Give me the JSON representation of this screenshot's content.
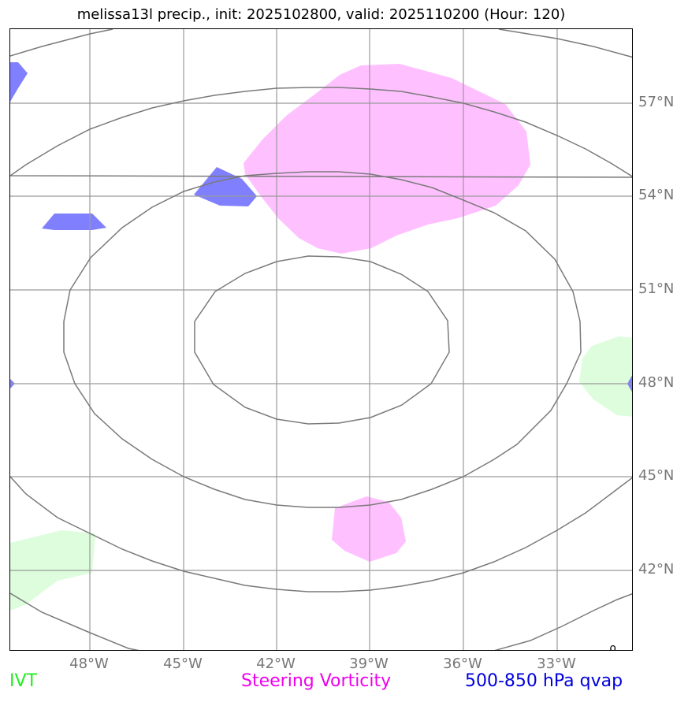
{
  "title": "melissa13l precip., init: 2025102800, valid: 2025110200 (Hour: 120)",
  "lat_labels": [
    "57°N",
    "54°N",
    "51°N",
    "48°N",
    "45°N",
    "42°N"
  ],
  "lon_labels": [
    "48°W",
    "45°W",
    "42°W",
    "39°W",
    "36°W",
    "33°W"
  ],
  "legend": {
    "ivt": "IVT",
    "vorticity": "Steering Vorticity",
    "qvap": "500-850 hPa qvap"
  },
  "colors": {
    "ivt_text": "#22ee22",
    "vorticity_text": "#ee00ee",
    "qvap_text": "#0000dd",
    "ivt_fill": "#ddfddd",
    "vorticity_fill": "#ffc0ff",
    "qvap_fill": "#8080ff",
    "contour": "#7a7a7a",
    "grid": "#9a9a9a"
  }
}
